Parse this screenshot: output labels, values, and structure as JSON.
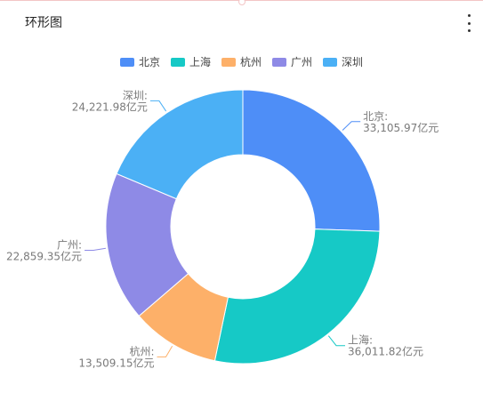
{
  "header": {
    "title": "环形图"
  },
  "menu_icon": "more-vertical-icon",
  "chart_data": {
    "type": "pie",
    "donut": true,
    "title": "环形图",
    "legend_position": "top-center",
    "slices": [
      {
        "name": "北京",
        "value": 33105.97,
        "label_name": "北京:",
        "label_value": "33,105.97亿元",
        "color": "#4e8ef7"
      },
      {
        "name": "上海",
        "value": 36011.82,
        "label_name": "上海:",
        "label_value": "36,011.82亿元",
        "color": "#16c9c6"
      },
      {
        "name": "杭州",
        "value": 13509.15,
        "label_name": "杭州:",
        "label_value": "13,509.15亿元",
        "color": "#fdb069"
      },
      {
        "name": "广州",
        "value": 22859.35,
        "label_name": "广州:",
        "label_value": "22,859.35亿元",
        "color": "#8e8ae6"
      },
      {
        "name": "深圳",
        "value": 24221.98,
        "label_name": "深圳:",
        "label_value": "24,221.98亿元",
        "color": "#4bb0f5"
      }
    ]
  }
}
